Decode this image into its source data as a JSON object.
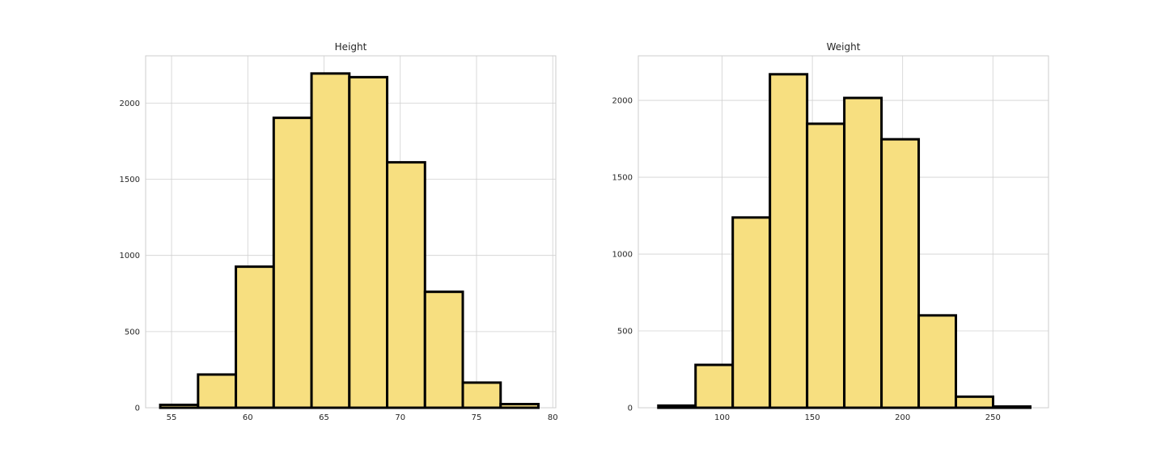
{
  "chart_data": [
    {
      "type": "bar",
      "title": "Height",
      "xlabel": "",
      "ylabel": "",
      "bar_color": "#f7df80",
      "edge_color": "#000000",
      "grid": true,
      "xlim": [
        53.3,
        80.2
      ],
      "ylim": [
        0,
        2310
      ],
      "xticks": [
        55,
        60,
        65,
        70,
        75,
        80
      ],
      "yticks": [
        0,
        500,
        1000,
        1500,
        2000
      ],
      "bin_edges": [
        54.26,
        56.74,
        59.22,
        61.7,
        64.18,
        66.66,
        69.14,
        71.62,
        74.1,
        76.58,
        79.06
      ],
      "values": [
        19,
        218,
        926,
        1903,
        2194,
        2170,
        1611,
        761,
        165,
        24
      ]
    },
    {
      "type": "bar",
      "title": "Weight",
      "xlabel": "",
      "ylabel": "",
      "bar_color": "#f7df80",
      "edge_color": "#000000",
      "grid": true,
      "xlim": [
        53.6,
        280.8
      ],
      "ylim": [
        0,
        2290
      ],
      "xticks": [
        100,
        150,
        200,
        250
      ],
      "yticks": [
        0,
        500,
        1000,
        1500,
        2000
      ],
      "bin_edges": [
        64.7,
        85.3,
        105.9,
        126.5,
        147.1,
        167.7,
        188.3,
        208.9,
        229.5,
        250.1,
        270.7
      ],
      "values": [
        14,
        279,
        1238,
        2170,
        1848,
        2016,
        1747,
        601,
        72,
        8
      ]
    }
  ]
}
